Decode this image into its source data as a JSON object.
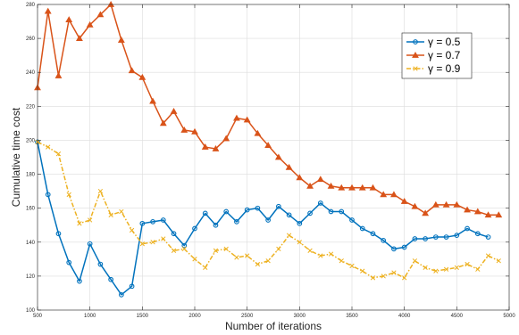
{
  "chart_data": {
    "type": "line",
    "xlabel": "Number of iterations",
    "ylabel": "Cumulative time cost",
    "xlim": [
      500,
      5000
    ],
    "ylim": [
      100,
      280
    ],
    "xticks": [
      500,
      1000,
      1500,
      2000,
      2500,
      3000,
      3500,
      4000,
      4500,
      5000
    ],
    "yticks": [
      100,
      120,
      140,
      160,
      180,
      200,
      220,
      240,
      260,
      280
    ],
    "grid": true,
    "legend_position": "top-right",
    "x": [
      500,
      600,
      700,
      800,
      900,
      1000,
      1100,
      1200,
      1300,
      1400,
      1500,
      1600,
      1700,
      1800,
      1900,
      2000,
      2100,
      2200,
      2300,
      2400,
      2500,
      2600,
      2700,
      2800,
      2900,
      3000,
      3100,
      3200,
      3300,
      3400,
      3500,
      3600,
      3700,
      3800,
      3900,
      4000,
      4100,
      4200,
      4300,
      4400,
      4500,
      4600,
      4700,
      4800,
      4900
    ],
    "series": [
      {
        "name": "γ = 0.5",
        "color": "#0072BD",
        "marker": "circle",
        "dash": "solid",
        "values": [
          199,
          168,
          145,
          128,
          117,
          139,
          127,
          118,
          109,
          114,
          151,
          152,
          153,
          145,
          138,
          148,
          157,
          150,
          158,
          152,
          159,
          160,
          153,
          161,
          156,
          151,
          157,
          163,
          158,
          158,
          153,
          148,
          145,
          141,
          136,
          137,
          142,
          142,
          143,
          143,
          144,
          148,
          145,
          143,
          null
        ]
      },
      {
        "name": "γ = 0.7",
        "color": "#D95319",
        "marker": "triangle",
        "dash": "solid",
        "values": [
          231,
          276,
          238,
          271,
          260,
          268,
          274,
          280,
          259,
          241,
          237,
          223,
          210,
          217,
          206,
          205,
          196,
          195,
          201,
          213,
          212,
          204,
          197,
          190,
          184,
          178,
          173,
          177,
          173,
          172,
          172,
          172,
          172,
          168,
          168,
          164,
          161,
          157,
          162,
          162,
          162,
          159,
          158,
          156,
          156
        ]
      },
      {
        "name": "γ = 0.9",
        "color": "#EDB120",
        "marker": "x",
        "dash": "dashdot",
        "values": [
          199,
          196,
          192,
          168,
          151,
          153,
          170,
          156,
          158,
          147,
          139,
          140,
          142,
          135,
          136,
          130,
          125,
          135,
          136,
          131,
          132,
          127,
          129,
          136,
          144,
          140,
          135,
          132,
          133,
          129,
          126,
          123,
          119,
          120,
          122,
          119,
          129,
          125,
          123,
          124,
          125,
          127,
          124,
          132,
          129
        ]
      }
    ]
  }
}
